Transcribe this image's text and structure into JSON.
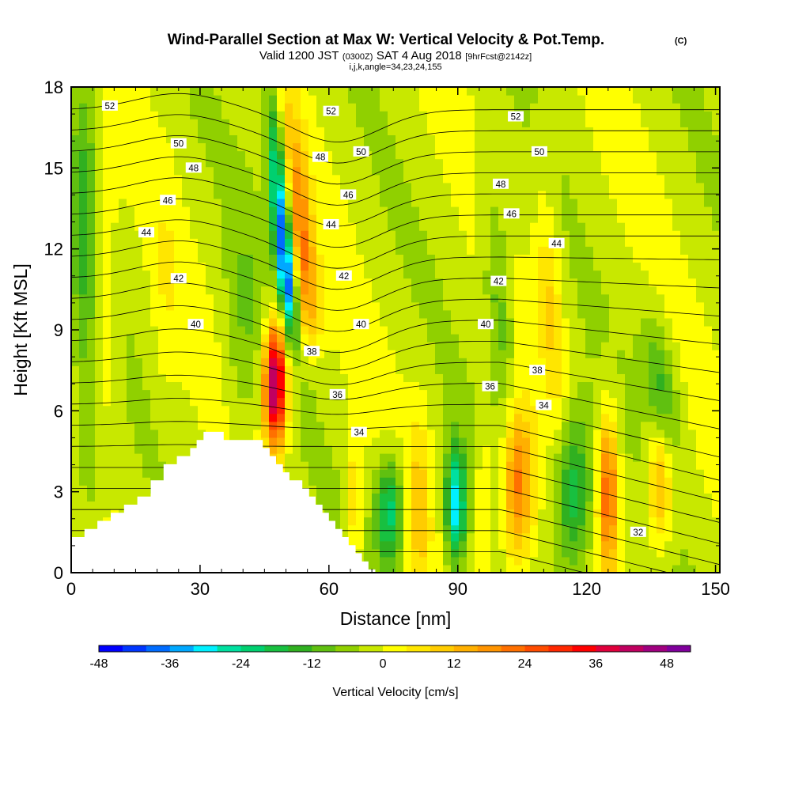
{
  "header": {
    "title": "Wind-Parallel Section at Max W: Vertical Velocity & Pot.Temp.",
    "copyright": "(C)",
    "valid_main": "Valid 1200 JST",
    "valid_z": "(0300Z)",
    "valid_date": "SAT 4 Aug 2018",
    "fcst": "[9hrFcst@2142z]",
    "indices": "i,j,k,angle=34,23,24,155"
  },
  "chart_data": {
    "type": "heatmap",
    "xlabel": "Distance [nm]",
    "ylabel": "Height [Kft MSL]",
    "xlim": [
      0,
      151
    ],
    "ylim": [
      0,
      18
    ],
    "xticks": [
      "0",
      "30",
      "60",
      "90",
      "120",
      "150"
    ],
    "yticks": [
      "0",
      "3",
      "6",
      "9",
      "12",
      "15",
      "18"
    ],
    "x_tick_values": [
      0,
      30,
      60,
      90,
      120,
      150
    ],
    "y_tick_values": [
      0,
      3,
      6,
      9,
      12,
      15,
      18
    ],
    "colorbar": {
      "label": "Vertical Velocity [cm/s]",
      "min": -48,
      "max": 52,
      "step": 4,
      "ticks": [
        "-48",
        "-36",
        "-24",
        "-12",
        "0",
        "12",
        "24",
        "36",
        "48"
      ],
      "tick_values": [
        -48,
        -36,
        -24,
        -12,
        0,
        12,
        24,
        36,
        48
      ],
      "colors": [
        "#0000ff",
        "#0036ff",
        "#006cff",
        "#00a8ff",
        "#00f0ff",
        "#00e0a0",
        "#00d070",
        "#18c040",
        "#30b020",
        "#60c010",
        "#90d000",
        "#c8e800",
        "#ffff00",
        "#ffe600",
        "#ffcc00",
        "#ffb000",
        "#ff9400",
        "#ff7000",
        "#ff4c00",
        "#ff2800",
        "#ff0000",
        "#e0003c",
        "#c00060",
        "#a00080",
        "#80009c"
      ]
    },
    "theta_contours": {
      "min": 30,
      "max": 53,
      "step": 1,
      "units": "K"
    },
    "theta_labels": [
      "52",
      "50",
      "48",
      "46",
      "44",
      "42",
      "40",
      "52",
      "48",
      "50",
      "46",
      "44",
      "42",
      "40",
      "38",
      "36",
      "34",
      "52",
      "50",
      "48",
      "46",
      "44",
      "42",
      "40",
      "38",
      "36",
      "34",
      "32"
    ],
    "terrain_kft": [
      [
        0,
        1.32
      ],
      [
        3.1,
        1.32
      ],
      [
        3.1,
        1.62
      ],
      [
        6.1,
        1.62
      ],
      [
        6.1,
        1.92
      ],
      [
        9.2,
        1.92
      ],
      [
        9.2,
        2.22
      ],
      [
        12.3,
        2.22
      ],
      [
        12.3,
        2.52
      ],
      [
        15.4,
        2.52
      ],
      [
        15.4,
        2.82
      ],
      [
        18.5,
        2.82
      ],
      [
        18.5,
        3.42
      ],
      [
        21.5,
        3.42
      ],
      [
        21.5,
        4.02
      ],
      [
        24.6,
        4.02
      ],
      [
        24.6,
        4.32
      ],
      [
        27.7,
        4.32
      ],
      [
        27.7,
        4.62
      ],
      [
        29.2,
        4.62
      ],
      [
        29.2,
        4.92
      ],
      [
        30.8,
        4.92
      ],
      [
        30.8,
        5.22
      ],
      [
        35.4,
        5.22
      ],
      [
        35.4,
        5.22
      ],
      [
        35.5,
        5.22
      ],
      [
        35.5,
        4.92
      ],
      [
        44.6,
        4.92
      ],
      [
        44.6,
        4.62
      ],
      [
        46.2,
        4.62
      ],
      [
        46.2,
        4.32
      ],
      [
        47.7,
        4.32
      ],
      [
        47.7,
        4.02
      ],
      [
        49.3,
        4.02
      ],
      [
        49.3,
        3.72
      ],
      [
        50.8,
        3.72
      ],
      [
        50.8,
        3.42
      ],
      [
        53.8,
        3.42
      ],
      [
        53.8,
        3.12
      ],
      [
        55.4,
        3.12
      ],
      [
        55.4,
        2.82
      ],
      [
        56.9,
        2.82
      ],
      [
        56.9,
        2.52
      ],
      [
        58.5,
        2.52
      ],
      [
        58.5,
        2.22
      ],
      [
        60.0,
        2.22
      ],
      [
        60.0,
        1.92
      ],
      [
        61.5,
        1.92
      ],
      [
        61.5,
        1.62
      ],
      [
        63.1,
        1.62
      ],
      [
        63.1,
        1.32
      ],
      [
        64.6,
        1.32
      ],
      [
        64.6,
        1.02
      ],
      [
        66.2,
        1.02
      ],
      [
        66.2,
        0.72
      ],
      [
        67.7,
        0.72
      ],
      [
        67.7,
        0.42
      ],
      [
        69.2,
        0.42
      ],
      [
        69.2,
        0.12
      ],
      [
        70.8,
        0.12
      ],
      [
        70.8,
        0
      ]
    ]
  }
}
